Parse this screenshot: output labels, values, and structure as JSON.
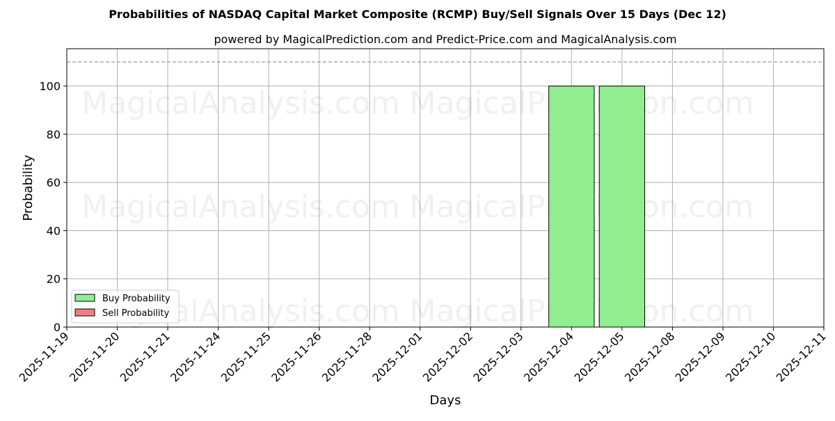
{
  "title": "Probabilities of NASDAQ Capital Market Composite (RCMP) Buy/Sell Signals Over 15 Days (Dec 12)",
  "subtitle": "powered by MagicalPrediction.com and Predict-Price.com and MagicalAnalysis.com",
  "watermarks": [
    "MagicalAnalysis.com",
    "MagicalPrediction.com"
  ],
  "colors": {
    "buy": "#90ee90",
    "sell": "#f08080",
    "edge": "#000000",
    "grid": "#b0b0b0",
    "refline": "#808080"
  },
  "chart_data": {
    "type": "bar",
    "title": "Probabilities of NASDAQ Capital Market Composite (RCMP) Buy/Sell Signals Over 15 Days (Dec 12)",
    "subtitle": "powered by MagicalPrediction.com and Predict-Price.com and MagicalAnalysis.com",
    "xlabel": "Days",
    "ylabel": "Probability",
    "categories": [
      "2025-11-19",
      "2025-11-20",
      "2025-11-21",
      "2025-11-24",
      "2025-11-25",
      "2025-11-26",
      "2025-11-28",
      "2025-12-01",
      "2025-12-02",
      "2025-12-03",
      "2025-12-04",
      "2025-12-05",
      "2025-12-08",
      "2025-12-09",
      "2025-12-10",
      "2025-12-11"
    ],
    "series": [
      {
        "name": "Buy Probability",
        "values": [
          0,
          0,
          0,
          0,
          0,
          0,
          0,
          0,
          0,
          0,
          100,
          100,
          0,
          0,
          0,
          0
        ]
      },
      {
        "name": "Sell Probability",
        "values": [
          0,
          0,
          0,
          0,
          0,
          0,
          0,
          0,
          0,
          0,
          0,
          0,
          0,
          0,
          0,
          0
        ]
      }
    ],
    "yticks": [
      0,
      20,
      40,
      60,
      80,
      100
    ],
    "ylim": [
      0,
      115.5
    ],
    "reference_line": {
      "y": 110,
      "style": "dashed"
    },
    "grid": true,
    "legend_position": "lower left"
  },
  "legend": [
    {
      "label": "Buy Probability",
      "color": "#90ee90"
    },
    {
      "label": "Sell Probability",
      "color": "#f08080"
    }
  ]
}
